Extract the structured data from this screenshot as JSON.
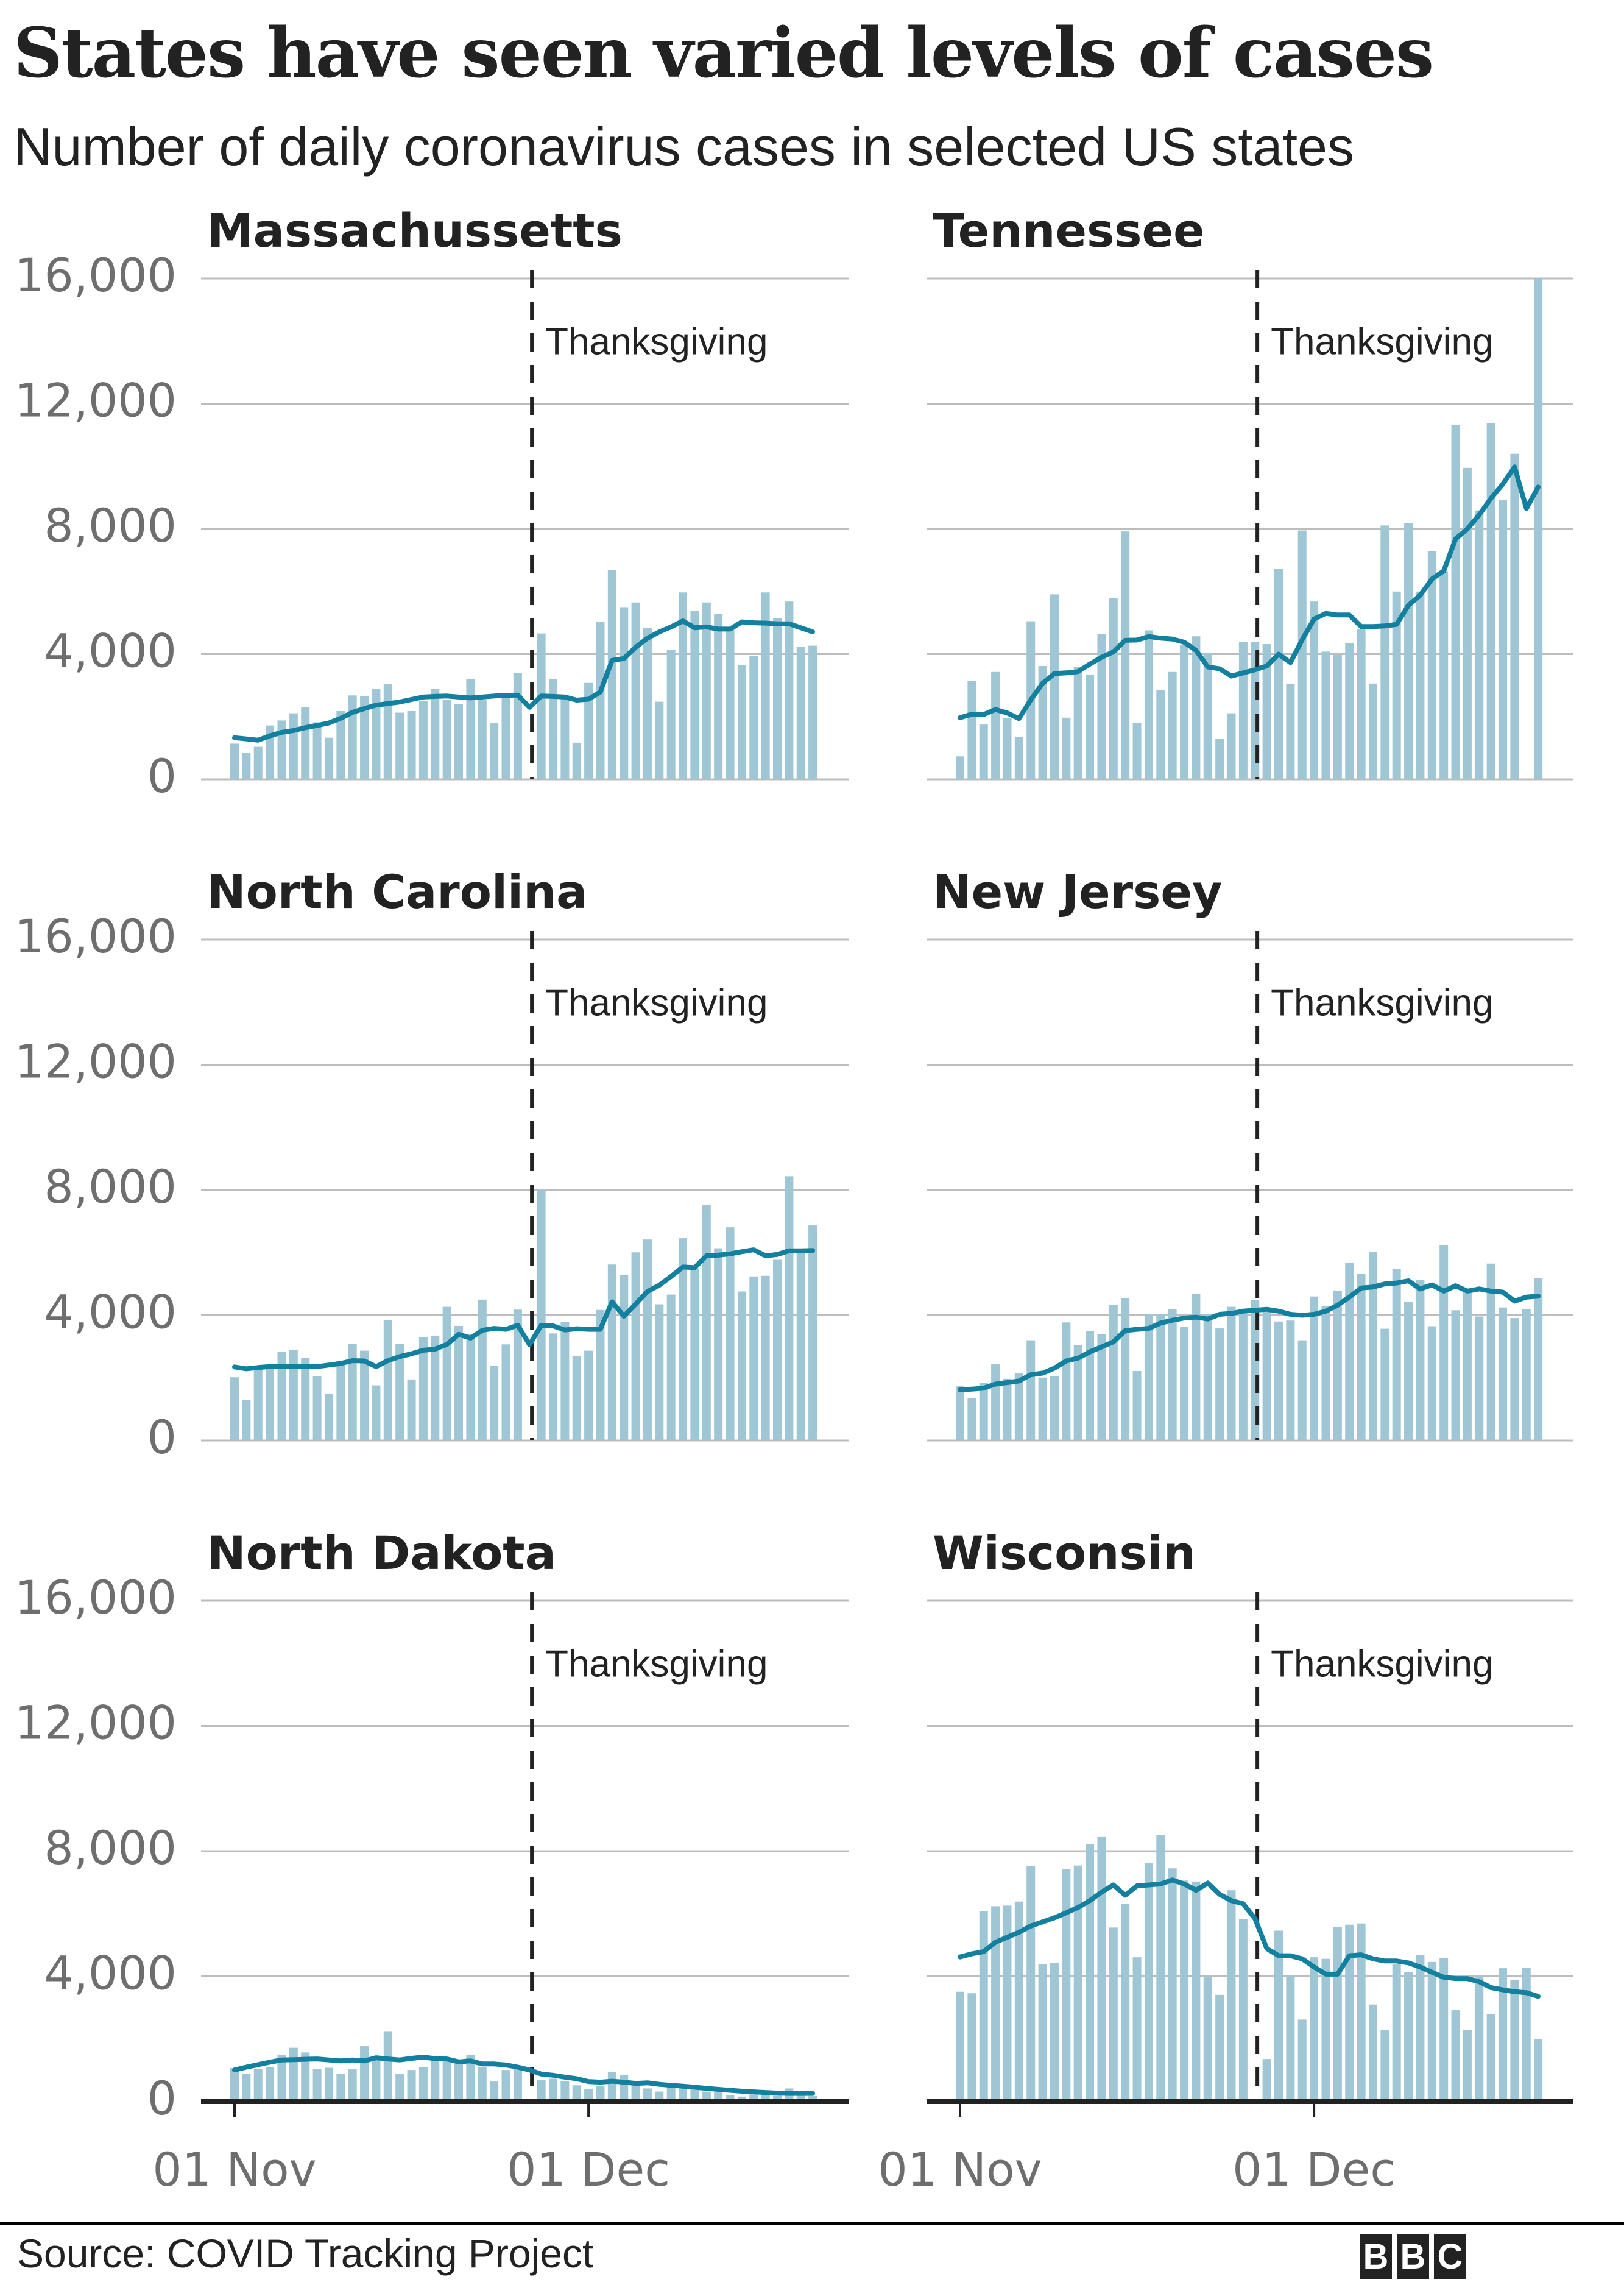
{
  "title": "States have seen varied levels of cases",
  "subtitle": "Number of daily coronavirus cases in selected US states",
  "source": "Source: COVID Tracking Project",
  "logo": "BBC",
  "colors": {
    "bar": "#9fc6d4",
    "line": "#14809f",
    "grid": "#bdbdbd",
    "annotation": "#222222",
    "axis": "#222222"
  },
  "chart_data": {
    "type": "bar+line small multiples",
    "y_ticks": [
      0,
      4000,
      8000,
      12000,
      16000
    ],
    "y_tick_labels": [
      "0",
      "4,000",
      "8,000",
      "12,000",
      "16,000"
    ],
    "ylim": [
      0,
      16000
    ],
    "x_ticks": [
      "01 Nov",
      "01 Dec"
    ],
    "x_start": "01 Nov",
    "grid": true,
    "annotation": {
      "label": "Thanksgiving",
      "date": "26 Nov"
    },
    "panels": [
      {
        "title": "Massachussetts",
        "bars": [
          1140,
          845,
          1040,
          1720,
          1880,
          2110,
          2300,
          1820,
          1330,
          2180,
          2680,
          2660,
          2900,
          3050,
          2130,
          2180,
          2500,
          2900,
          2530,
          2400,
          3210,
          2530,
          1790,
          2600,
          3390,
          0,
          4660,
          3210,
          2600,
          1170,
          3080,
          5030,
          6690,
          5500,
          5650,
          4840,
          2480,
          4140,
          5970,
          5390,
          5650,
          5280,
          4860,
          3650,
          3950,
          5970,
          5140,
          5680,
          4230,
          4270
        ],
        "line": [
          1330,
          1290,
          1250,
          1390,
          1500,
          1560,
          1650,
          1720,
          1800,
          1950,
          2140,
          2260,
          2370,
          2420,
          2470,
          2550,
          2630,
          2650,
          2660,
          2630,
          2600,
          2630,
          2660,
          2680,
          2690,
          2300,
          2660,
          2650,
          2630,
          2530,
          2560,
          2790,
          3800,
          3860,
          4220,
          4510,
          4710,
          4870,
          5060,
          4840,
          4870,
          4800,
          4800,
          5030,
          5000,
          4990,
          4970,
          4970,
          4840,
          4710
        ]
      },
      {
        "title": "Tennessee",
        "bars": [
          735,
          3135,
          1750,
          3430,
          1950,
          1350,
          5050,
          3620,
          5910,
          1970,
          3600,
          3350,
          4650,
          5800,
          7920,
          1800,
          4760,
          2860,
          3430,
          4290,
          4570,
          4050,
          1300,
          2110,
          4380,
          4400,
          4320,
          6720,
          3050,
          7950,
          5680,
          4080,
          3970,
          4360,
          4810,
          3060,
          8110,
          6000,
          8190,
          6000,
          7280,
          6650,
          11330,
          9950,
          8590,
          11380,
          8920,
          10400,
          0,
          16000
        ],
        "line": [
          1970,
          2080,
          2070,
          2230,
          2120,
          1940,
          2540,
          3070,
          3380,
          3400,
          3440,
          3680,
          3900,
          4070,
          4440,
          4450,
          4560,
          4510,
          4480,
          4380,
          4120,
          3590,
          3530,
          3300,
          3400,
          3500,
          3620,
          4000,
          3730,
          4460,
          5120,
          5300,
          5250,
          5250,
          4880,
          4880,
          4900,
          4950,
          5560,
          5880,
          6400,
          6660,
          7680,
          8000,
          8450,
          8980,
          9430,
          9980,
          8650,
          9340
        ]
      },
      {
        "title": "North Carolina",
        "bars": [
          2020,
          1300,
          2280,
          2280,
          2830,
          2900,
          2640,
          2050,
          1500,
          2540,
          3090,
          2870,
          1760,
          3840,
          3090,
          1950,
          3290,
          3350,
          4270,
          3660,
          3390,
          4500,
          2380,
          3070,
          4180,
          0,
          8000,
          3420,
          3790,
          2700,
          2870,
          4170,
          5620,
          5290,
          6010,
          6420,
          4350,
          4660,
          6460,
          5500,
          7520,
          6140,
          6810,
          4760,
          5240,
          5260,
          5770,
          8440,
          6120,
          6870
        ],
        "line": [
          2350,
          2290,
          2330,
          2360,
          2360,
          2370,
          2360,
          2360,
          2410,
          2460,
          2550,
          2540,
          2360,
          2550,
          2680,
          2770,
          2880,
          2920,
          3070,
          3390,
          3270,
          3520,
          3580,
          3550,
          3680,
          3060,
          3680,
          3660,
          3530,
          3570,
          3550,
          3550,
          4430,
          3970,
          4360,
          4760,
          4960,
          5240,
          5540,
          5520,
          5900,
          5920,
          5960,
          6030,
          6090,
          5900,
          5940,
          6060,
          6060,
          6070
        ]
      },
      {
        "title": "New Jersey",
        "bars": [
          1730,
          1360,
          1830,
          2450,
          1970,
          2160,
          3200,
          2010,
          2060,
          3770,
          3050,
          3490,
          3390,
          4340,
          4550,
          2220,
          4040,
          4030,
          4190,
          3620,
          4680,
          4030,
          3580,
          4270,
          4060,
          4480,
          4190,
          3800,
          3830,
          3200,
          4600,
          4290,
          4790,
          5670,
          5320,
          6020,
          3570,
          5470,
          4430,
          5130,
          3650,
          6230,
          4160,
          4760,
          3960,
          5650,
          4250,
          3910,
          4190,
          5180
        ],
        "line": [
          1620,
          1640,
          1670,
          1800,
          1850,
          1900,
          2100,
          2150,
          2310,
          2540,
          2630,
          2830,
          2990,
          3150,
          3510,
          3550,
          3580,
          3750,
          3840,
          3910,
          3940,
          3880,
          4030,
          4060,
          4130,
          4160,
          4190,
          4130,
          4030,
          4000,
          4030,
          4130,
          4320,
          4580,
          4870,
          4900,
          5000,
          5030,
          5100,
          4840,
          4970,
          4770,
          4940,
          4770,
          4840,
          4770,
          4740,
          4450,
          4580,
          4610
        ]
      },
      {
        "title": "North Dakota",
        "bars": [
          1070,
          890,
          1040,
          1100,
          1490,
          1720,
          1570,
          1050,
          1080,
          880,
          1030,
          1770,
          1420,
          2250,
          890,
          1010,
          1100,
          1300,
          1290,
          1230,
          1490,
          1100,
          640,
          1010,
          1070,
          0,
          680,
          730,
          660,
          520,
          410,
          490,
          950,
          840,
          550,
          420,
          320,
          520,
          420,
          390,
          320,
          290,
          210,
          160,
          230,
          230,
          190,
          420,
          190,
          180
        ],
        "line": [
          1010,
          1100,
          1180,
          1260,
          1330,
          1340,
          1350,
          1360,
          1330,
          1300,
          1330,
          1300,
          1400,
          1360,
          1330,
          1380,
          1420,
          1370,
          1360,
          1270,
          1300,
          1200,
          1200,
          1170,
          1100,
          1010,
          880,
          840,
          780,
          730,
          640,
          620,
          650,
          620,
          580,
          600,
          550,
          520,
          490,
          460,
          420,
          390,
          360,
          330,
          310,
          290,
          270,
          260,
          260,
          260
        ]
      },
      {
        "title": "Wisconsin",
        "bars": [
          3510,
          3460,
          6090,
          6240,
          6260,
          6390,
          7520,
          4380,
          4430,
          7430,
          7540,
          8230,
          8470,
          5560,
          6310,
          4610,
          7610,
          8520,
          7450,
          7060,
          7030,
          3990,
          3410,
          6750,
          5840,
          0,
          1360,
          5460,
          4020,
          2620,
          4610,
          4560,
          5570,
          5650,
          5690,
          3100,
          2280,
          4390,
          4140,
          4690,
          4460,
          4590,
          2920,
          2280,
          4000,
          2790,
          4260,
          3890,
          4280,
          2000
        ],
        "line": [
          4620,
          4720,
          4790,
          5090,
          5250,
          5410,
          5610,
          5740,
          5870,
          6030,
          6200,
          6420,
          6690,
          6920,
          6590,
          6890,
          6920,
          6950,
          7080,
          6950,
          6750,
          6980,
          6620,
          6420,
          6320,
          5840,
          4890,
          4660,
          4660,
          4560,
          4300,
          4070,
          4070,
          4660,
          4690,
          4560,
          4490,
          4490,
          4430,
          4300,
          4130,
          3970,
          3930,
          3930,
          3830,
          3640,
          3570,
          3510,
          3480,
          3360
        ]
      }
    ]
  }
}
